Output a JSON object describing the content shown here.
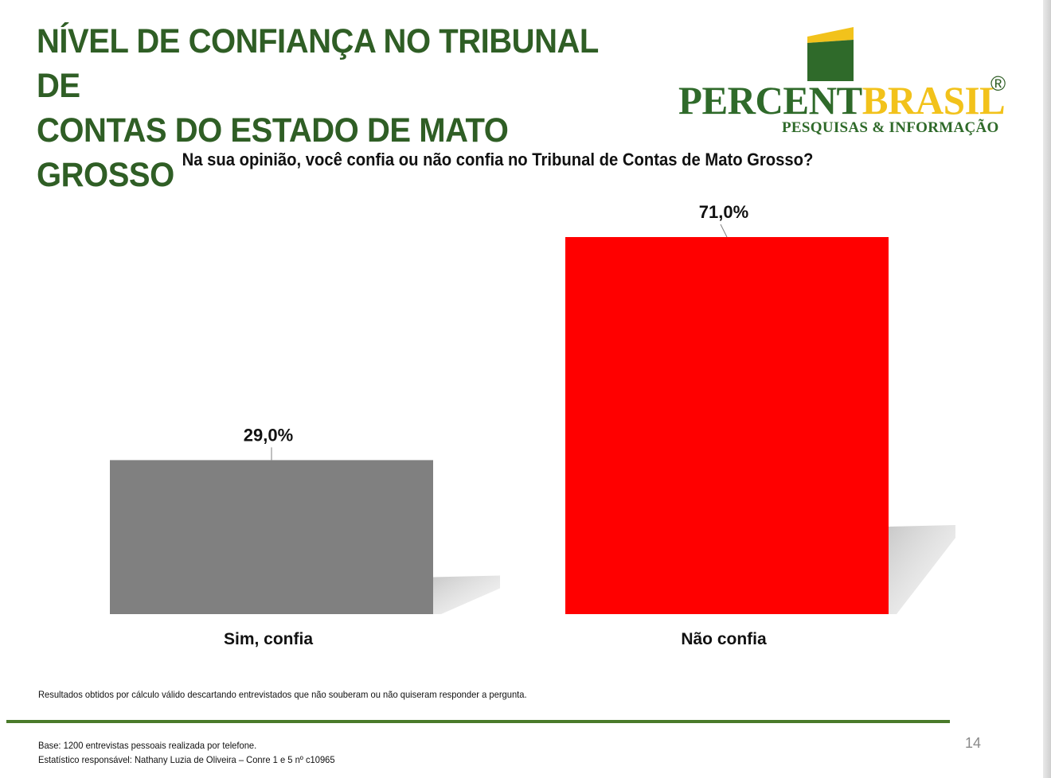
{
  "header": {
    "title_line1": "NÍVEL DE CONFIANÇA NO TRIBUNAL DE",
    "title_line2": "CONTAS DO ESTADO DE MATO GROSSO"
  },
  "logo": {
    "word1": "PERCENT",
    "word2": "BRASIL",
    "registered": "®",
    "subtitle": "PESQUISAS & INFORMAÇÃO",
    "colors": {
      "green": "#2f6a2a",
      "yellow": "#f2c21b"
    }
  },
  "question": "Na sua opinião, você confia ou não confia no Tribunal de Contas de Mato Grosso?",
  "chart_data": {
    "type": "bar",
    "categories": [
      "Sim, confia",
      "Não confia"
    ],
    "values": [
      29.0,
      71.0
    ],
    "data_labels": [
      "29,0%",
      "71,0%"
    ],
    "colors": [
      "#808080",
      "#ff0000"
    ],
    "ylim": [
      0,
      71.0
    ],
    "grid": false,
    "legend": "none",
    "title": "",
    "xlabel": "",
    "ylabel": ""
  },
  "footer": {
    "note": "Resultados obtidos por cálculo válido descartando entrevistados que não souberam ou não quiseram responder a pergunta.",
    "base_line1": "Base: 1200 entrevistas pessoais realizada por telefone.",
    "base_line2": "Estatístico responsável: Nathany Luzia de Oliveira – Conre 1 e 5 nº c10965",
    "page_number": "14"
  }
}
